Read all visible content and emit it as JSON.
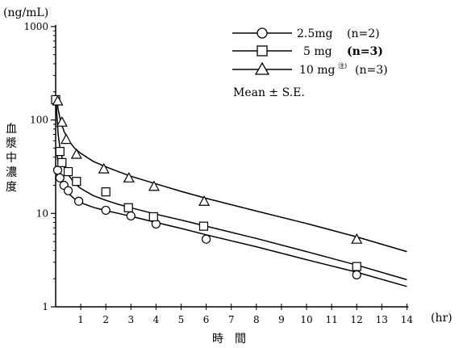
{
  "chart_data": {
    "type": "scatter",
    "y_scale": "log",
    "ylim": [
      1,
      1000
    ],
    "xlim": [
      0,
      14
    ],
    "y_unit": "(ng/mL)",
    "ylabel": "血漿中濃度",
    "xlabel": "時　間",
    "x_unit": "(hr)",
    "x_ticks": [
      "1",
      "2",
      "3",
      "4",
      "5",
      "6",
      "7",
      "8",
      "9",
      "10",
      "11",
      "12",
      "13",
      "14"
    ],
    "y_ticks": [
      "1",
      "10",
      "100",
      "1000"
    ],
    "legend_note": "Mean ± S.E.",
    "series": [
      {
        "name": "2.5mg",
        "dose": "2.5mg",
        "dose_note": "",
        "n_label": "(n=2)",
        "marker": "circle",
        "points": [
          [
            0.08,
            29
          ],
          [
            0.17,
            24
          ],
          [
            0.33,
            20
          ],
          [
            0.5,
            17.5
          ],
          [
            0.92,
            13.5
          ],
          [
            2,
            10.8
          ],
          [
            3,
            9.4
          ],
          [
            4,
            7.7
          ],
          [
            6,
            5.3
          ],
          [
            12,
            2.2
          ]
        ],
        "fit": [
          [
            0.05,
            45
          ],
          [
            0.1,
            34
          ],
          [
            0.17,
            25.5
          ],
          [
            0.25,
            21.5
          ],
          [
            0.33,
            19.5
          ],
          [
            0.5,
            16.5
          ],
          [
            0.75,
            14.3
          ],
          [
            1,
            13
          ],
          [
            1.5,
            11.6
          ],
          [
            2,
            10.7
          ],
          [
            2.5,
            10
          ],
          [
            3,
            9.3
          ],
          [
            4,
            8
          ],
          [
            5,
            6.9
          ],
          [
            6,
            5.9
          ],
          [
            8,
            4.4
          ],
          [
            10,
            3.2
          ],
          [
            12,
            2.35
          ],
          [
            14,
            1.65
          ]
        ]
      },
      {
        "name": "5 mg",
        "dose": "5 mg",
        "dose_note": "",
        "n_label": "(n=3)",
        "marker": "square",
        "points": [
          [
            0.0,
            165
          ],
          [
            0.17,
            46
          ],
          [
            0.25,
            35
          ],
          [
            0.5,
            28
          ],
          [
            0.83,
            22
          ],
          [
            2,
            17
          ],
          [
            2.9,
            11.5
          ],
          [
            3.9,
            9.2
          ],
          [
            5.9,
            7.3
          ],
          [
            12,
            2.7
          ]
        ],
        "fit": [
          [
            0.02,
            160
          ],
          [
            0.05,
            110
          ],
          [
            0.1,
            70
          ],
          [
            0.17,
            50
          ],
          [
            0.25,
            40
          ],
          [
            0.33,
            33
          ],
          [
            0.5,
            26
          ],
          [
            0.75,
            21
          ],
          [
            1,
            18.5
          ],
          [
            1.5,
            15.5
          ],
          [
            2,
            13.8
          ],
          [
            2.5,
            12.5
          ],
          [
            3,
            11.5
          ],
          [
            4,
            9.8
          ],
          [
            5,
            8.5
          ],
          [
            6,
            7.3
          ],
          [
            8,
            5.4
          ],
          [
            10,
            3.9
          ],
          [
            12,
            2.8
          ],
          [
            14,
            1.95
          ]
        ]
      },
      {
        "name": "10 mg",
        "dose": "10 mg",
        "dose_note": "注)",
        "n_label": "(n=3)",
        "marker": "triangle",
        "points": [
          [
            0.08,
            160
          ],
          [
            0.25,
            95
          ],
          [
            0.42,
            62
          ],
          [
            0.83,
            43
          ],
          [
            1.92,
            30
          ],
          [
            2.92,
            24
          ],
          [
            3.92,
            19.5
          ],
          [
            5.92,
            13.5
          ],
          [
            12,
            5.3
          ]
        ],
        "fit": [
          [
            0.05,
            160
          ],
          [
            0.1,
            130
          ],
          [
            0.17,
            105
          ],
          [
            0.25,
            88
          ],
          [
            0.33,
            76
          ],
          [
            0.5,
            61
          ],
          [
            0.75,
            50
          ],
          [
            1,
            44
          ],
          [
            1.5,
            36
          ],
          [
            2,
            31.5
          ],
          [
            2.5,
            28
          ],
          [
            3,
            25
          ],
          [
            4,
            20.7
          ],
          [
            5,
            17.2
          ],
          [
            6,
            14.5
          ],
          [
            8,
            10.6
          ],
          [
            10,
            7.8
          ],
          [
            12,
            5.6
          ],
          [
            14,
            3.9
          ]
        ]
      }
    ]
  }
}
